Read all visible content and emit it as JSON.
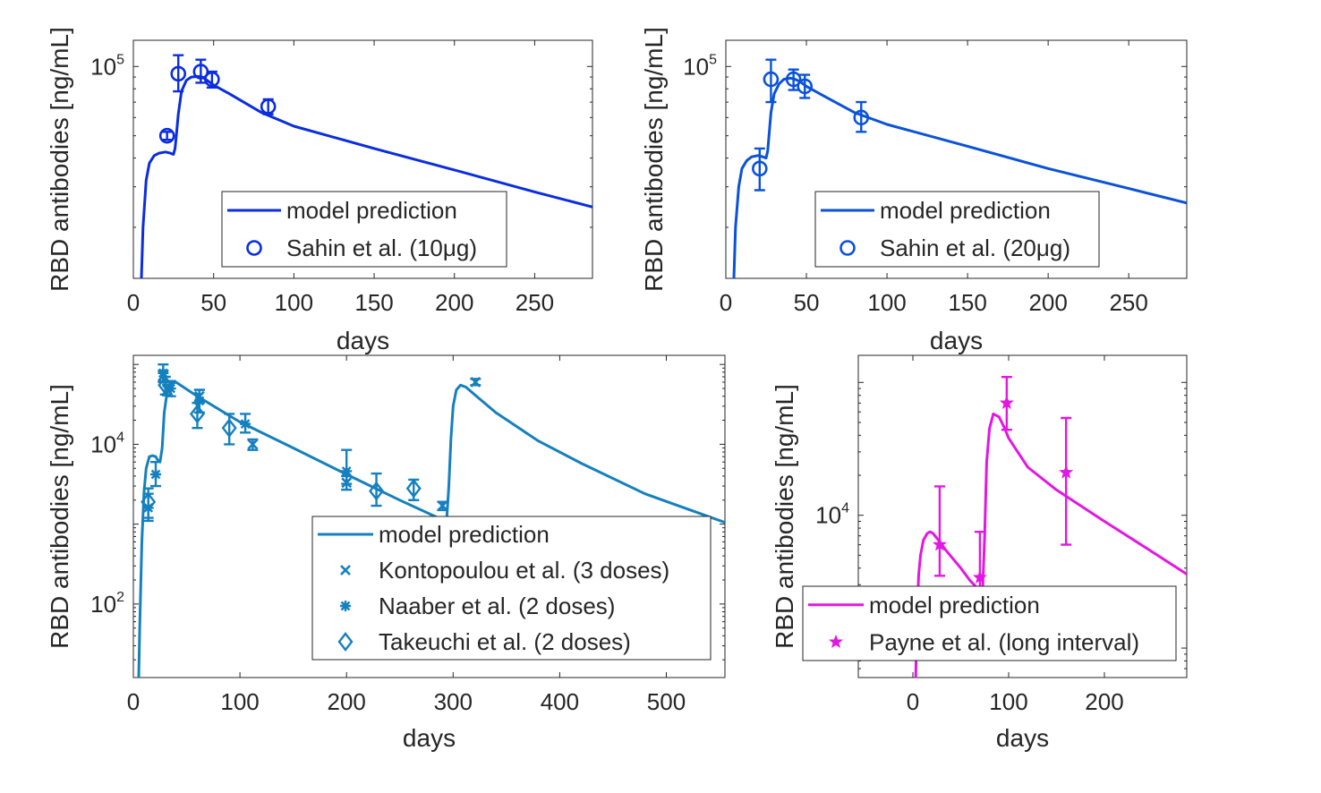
{
  "chart_data": [
    {
      "type": "line",
      "panel": "top-left",
      "xlabel": "days",
      "ylabel": "RBD antibodies [ng/mL]",
      "xlim": [
        0,
        286
      ],
      "ylim": [
        12000,
        130000
      ],
      "y_scale": "log",
      "xticks": [
        "0",
        "50",
        "100",
        "150",
        "200",
        "250"
      ],
      "xtick_values": [
        0,
        50,
        100,
        150,
        200,
        250
      ],
      "yticks": [
        {
          "value": 100000,
          "base": "10",
          "exp": "5"
        }
      ],
      "color": "#0a2de0",
      "legend_position": "lower-right",
      "series": [
        {
          "name": "model prediction",
          "kind": "line",
          "x": [
            5,
            6,
            8,
            10,
            13,
            16,
            20,
            23,
            25,
            26,
            27,
            28,
            30,
            33,
            36,
            40,
            43,
            46,
            50,
            60,
            80,
            100,
            150,
            200,
            250,
            286
          ],
          "y": [
            12000,
            20000,
            32000,
            38000,
            41000,
            42000,
            42500,
            42000,
            41500,
            44000,
            52000,
            62000,
            78000,
            87000,
            90000,
            90500,
            90000,
            87000,
            83000,
            76000,
            63000,
            55000,
            44000,
            35500,
            28500,
            24500
          ]
        },
        {
          "name": "Sahin et al. (10μg)",
          "kind": "scatter",
          "marker": "circle",
          "x": [
            21,
            28,
            42,
            49,
            84
          ],
          "y": [
            50000,
            93000,
            95000,
            88000,
            67000
          ],
          "err_low": [
            48000,
            78000,
            85000,
            81000,
            62000
          ],
          "err_high": [
            52000,
            112000,
            107000,
            95000,
            72000
          ]
        }
      ]
    },
    {
      "type": "line",
      "panel": "top-right",
      "xlabel": "days",
      "ylabel": "RBD antibodies [ng/mL]",
      "xlim": [
        0,
        286
      ],
      "ylim": [
        12000,
        130000
      ],
      "y_scale": "log",
      "xticks": [
        "0",
        "50",
        "100",
        "150",
        "200",
        "250"
      ],
      "xtick_values": [
        0,
        50,
        100,
        150,
        200,
        250
      ],
      "yticks": [
        {
          "value": 100000,
          "base": "10",
          "exp": "5"
        }
      ],
      "color": "#0a52d9",
      "legend_position": "lower-right",
      "series": [
        {
          "name": "model prediction",
          "kind": "line",
          "x": [
            5,
            6,
            8,
            10,
            13,
            16,
            20,
            23,
            25,
            26,
            27,
            28,
            30,
            33,
            36,
            40,
            43,
            46,
            50,
            60,
            80,
            100,
            150,
            200,
            250,
            286
          ],
          "y": [
            12000,
            20000,
            30000,
            36000,
            39000,
            40500,
            41000,
            40500,
            40000,
            43000,
            52000,
            63000,
            76000,
            84000,
            88000,
            89000,
            88000,
            86000,
            82000,
            75000,
            63000,
            56000,
            45000,
            36000,
            29500,
            25500
          ]
        },
        {
          "name": "Sahin et al. (20μg)",
          "kind": "scatter",
          "marker": "circle",
          "x": [
            21,
            28,
            42,
            49,
            84
          ],
          "y": [
            36000,
            88000,
            88000,
            82000,
            60000
          ],
          "err_low": [
            29000,
            70000,
            79000,
            73000,
            52000
          ],
          "err_high": [
            44000,
            107000,
            97000,
            92000,
            70000
          ]
        }
      ]
    },
    {
      "type": "line",
      "panel": "bottom-left",
      "xlabel": "days",
      "ylabel": "RBD antibodies [ng/mL]",
      "xlim": [
        0,
        555
      ],
      "ylim": [
        12,
        130000
      ],
      "y_scale": "log",
      "xticks": [
        "0",
        "100",
        "200",
        "300",
        "400",
        "500"
      ],
      "xtick_values": [
        0,
        100,
        200,
        300,
        400,
        500
      ],
      "yticks": [
        {
          "value": 100,
          "base": "10",
          "exp": "2"
        },
        {
          "value": 10000,
          "base": "10",
          "exp": "4"
        }
      ],
      "color": "#1580be",
      "legend_position": "lower-right",
      "series": [
        {
          "name": "model prediction",
          "kind": "line",
          "x": [
            5,
            6,
            8,
            10,
            12,
            15,
            18,
            21,
            23,
            25,
            27,
            29,
            32,
            36,
            40,
            60,
            100,
            150,
            200,
            250,
            292,
            294,
            296,
            298,
            300,
            303,
            307,
            312,
            320,
            340,
            380,
            420,
            480,
            555
          ],
          "y": [
            12,
            50,
            600,
            2500,
            5000,
            7000,
            7200,
            7000,
            6300,
            6000,
            9000,
            25000,
            48000,
            58000,
            60000,
            40000,
            19000,
            9000,
            4200,
            2000,
            1100,
            1200,
            3000,
            12000,
            30000,
            48000,
            55000,
            52000,
            42000,
            25000,
            11000,
            5800,
            2400,
            1050
          ]
        },
        {
          "name": "Kontopoulou et al. (3 doses)",
          "kind": "scatter",
          "marker": "x",
          "x": [
            28,
            32,
            62,
            112,
            200,
            290,
            321
          ],
          "y": [
            72000,
            48000,
            40000,
            10000,
            3300,
            1700,
            60000
          ],
          "err_low": [
            62000,
            41000,
            33000,
            8500,
            2700,
            1500,
            55000
          ],
          "err_high": [
            84000,
            56000,
            48000,
            11500,
            4000,
            1900,
            66000
          ]
        },
        {
          "name": "Naaber et al. (2 doses)",
          "kind": "scatter",
          "marker": "asterisk",
          "x": [
            14,
            21,
            28,
            35,
            62,
            105,
            200
          ],
          "y": [
            1600,
            4200,
            78000,
            50000,
            35000,
            18000,
            4600
          ],
          "err_low": [
            1100,
            3000,
            60000,
            40000,
            25000,
            14000,
            3200
          ],
          "err_high": [
            2400,
            6000,
            100000,
            62000,
            48000,
            24000,
            8500
          ]
        },
        {
          "name": "Takeuchi et al. (2 doses)",
          "kind": "scatter",
          "marker": "diamond",
          "x": [
            14,
            30,
            60,
            90,
            228,
            263
          ],
          "y": [
            1900,
            55000,
            24000,
            16000,
            2600,
            2800
          ],
          "err_low": [
            1200,
            42000,
            16000,
            10000,
            1700,
            2000
          ],
          "err_high": [
            2800,
            70000,
            33000,
            24000,
            4300,
            3600
          ]
        }
      ]
    },
    {
      "type": "line",
      "panel": "bottom-right",
      "xlabel": "days",
      "ylabel": "RBD antibodies [ng/mL]",
      "xlim": [
        -57,
        286
      ],
      "ylim": [
        600,
        160000
      ],
      "y_scale": "log",
      "xticks": [
        "0",
        "100",
        "200"
      ],
      "xtick_values": [
        0,
        100,
        200
      ],
      "yticks": [
        {
          "value": 10000,
          "base": "10",
          "exp": "4"
        }
      ],
      "color": "#e317e3",
      "legend_position": "lower-left",
      "series": [
        {
          "name": "model prediction",
          "kind": "line",
          "x": [
            3,
            4,
            6,
            8,
            11,
            15,
            18,
            21,
            26,
            35,
            50,
            60,
            68,
            71,
            73,
            75,
            77,
            80,
            84,
            90,
            96,
            100,
            120,
            150,
            200,
            250,
            286
          ],
          "y": [
            600,
            1500,
            3500,
            5000,
            6500,
            7300,
            7500,
            7300,
            6600,
            5400,
            4000,
            3200,
            2800,
            2700,
            2900,
            7000,
            25000,
            45000,
            58000,
            55000,
            45000,
            38000,
            23000,
            15500,
            9000,
            5300,
            3600
          ]
        },
        {
          "name": "Payne et al. (long interval)",
          "kind": "scatter",
          "marker": "star",
          "x": [
            28,
            70,
            98,
            160
          ],
          "y": [
            6000,
            3400,
            70000,
            21000
          ],
          "err_low": [
            3500,
            1400,
            44000,
            6000
          ],
          "err_high": [
            16500,
            7500,
            110000,
            54000
          ]
        }
      ]
    }
  ]
}
